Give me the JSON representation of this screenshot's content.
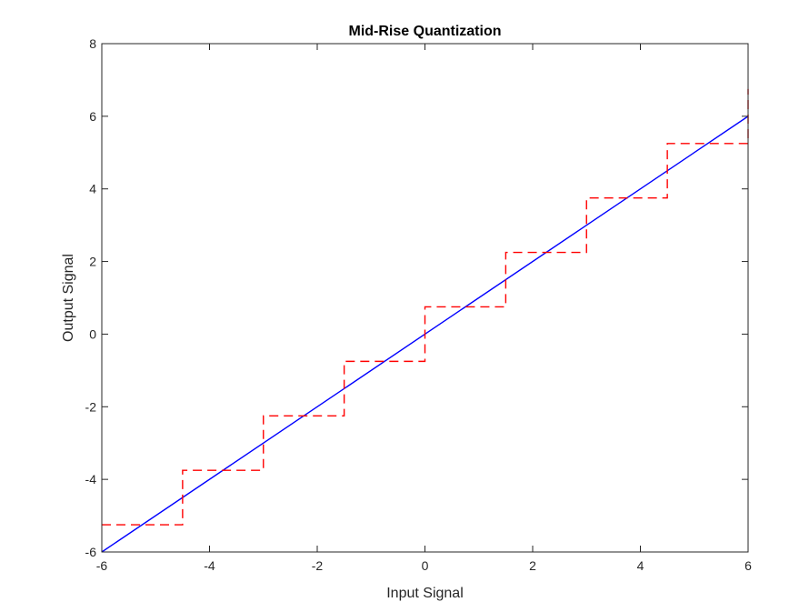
{
  "chart_data": {
    "type": "line",
    "title": "Mid-Rise Quantization",
    "xlabel": "Input Signal",
    "ylabel": "Output Signal",
    "xlim": [
      -6,
      6
    ],
    "ylim": [
      -6,
      8
    ],
    "xticks": [
      "-6",
      "-4",
      "-2",
      "0",
      "2",
      "4",
      "6"
    ],
    "yticks": [
      "-6",
      "-4",
      "-2",
      "0",
      "2",
      "4",
      "6",
      "8"
    ],
    "grid": false,
    "series": [
      {
        "style": "solid",
        "color": "#0000ff",
        "x": [
          -6,
          6
        ],
        "y": [
          -6,
          6
        ]
      },
      {
        "style": "dashed",
        "color": "#ff0000",
        "x": [
          -6,
          -4.5,
          -4.5,
          -3,
          -3,
          -1.5,
          -1.5,
          0,
          0,
          1.5,
          1.5,
          3,
          3,
          4.5,
          4.5,
          6,
          6
        ],
        "y": [
          -5.25,
          -5.25,
          -3.75,
          -3.75,
          -2.25,
          -2.25,
          -0.75,
          -0.75,
          0.75,
          0.75,
          2.25,
          2.25,
          3.75,
          3.75,
          5.25,
          5.25,
          6.75
        ]
      }
    ]
  }
}
